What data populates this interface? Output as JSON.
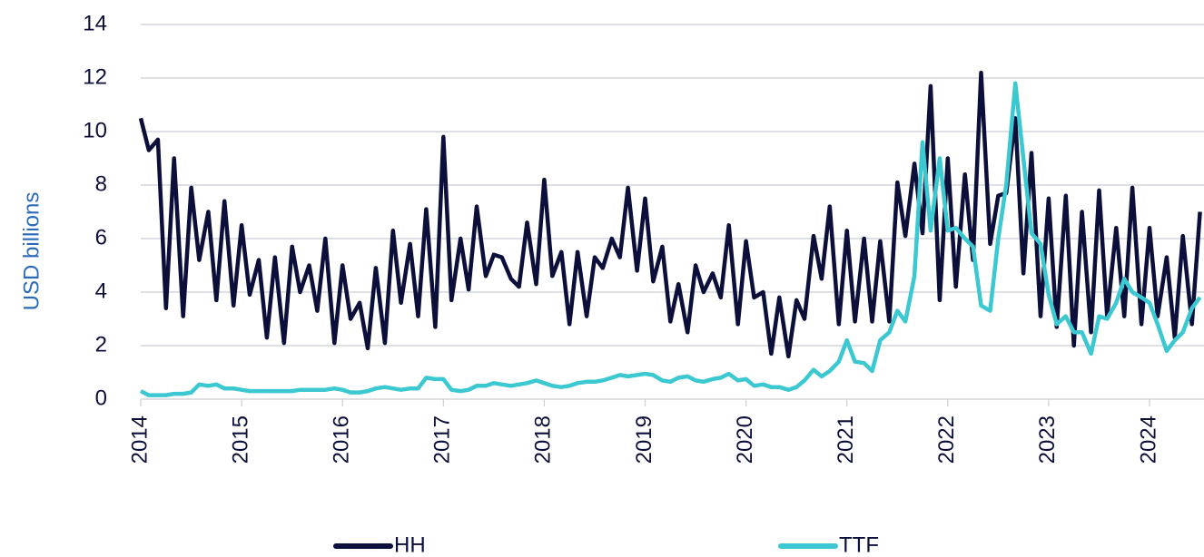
{
  "chart_data": {
    "type": "line",
    "ylabel": "USD billions",
    "x": [
      2014,
      2014.08,
      2014.17,
      2014.25,
      2014.33,
      2014.42,
      2014.5,
      2014.58,
      2014.67,
      2014.75,
      2014.83,
      2014.92,
      2015,
      2015.08,
      2015.17,
      2015.25,
      2015.33,
      2015.42,
      2015.5,
      2015.58,
      2015.67,
      2015.75,
      2015.83,
      2015.92,
      2016,
      2016.08,
      2016.17,
      2016.25,
      2016.33,
      2016.42,
      2016.5,
      2016.58,
      2016.67,
      2016.75,
      2016.83,
      2016.92,
      2017,
      2017.08,
      2017.17,
      2017.25,
      2017.33,
      2017.42,
      2017.5,
      2017.58,
      2017.67,
      2017.75,
      2017.83,
      2017.92,
      2018,
      2018.08,
      2018.17,
      2018.25,
      2018.33,
      2018.42,
      2018.5,
      2018.58,
      2018.67,
      2018.75,
      2018.83,
      2018.92,
      2019,
      2019.08,
      2019.17,
      2019.25,
      2019.33,
      2019.42,
      2019.5,
      2019.58,
      2019.67,
      2019.75,
      2019.83,
      2019.92,
      2020,
      2020.08,
      2020.17,
      2020.25,
      2020.33,
      2020.42,
      2020.5,
      2020.58,
      2020.67,
      2020.75,
      2020.83,
      2020.92,
      2021,
      2021.08,
      2021.17,
      2021.25,
      2021.33,
      2021.42,
      2021.5,
      2021.58,
      2021.67,
      2021.75,
      2021.83,
      2021.92,
      2022,
      2022.08,
      2022.17,
      2022.25,
      2022.33,
      2022.42,
      2022.5,
      2022.58,
      2022.67,
      2022.75,
      2022.83,
      2022.92,
      2023,
      2023.08,
      2023.17,
      2023.25,
      2023.33,
      2023.42,
      2023.5,
      2023.58,
      2023.67,
      2023.75,
      2023.83,
      2023.92,
      2024,
      2024.08,
      2024.17,
      2024.25,
      2024.33,
      2024.42,
      2024.5
    ],
    "series": [
      {
        "name": "HH",
        "color": "#0c0f3a",
        "values": [
          10.5,
          9.3,
          9.7,
          3.4,
          9.0,
          3.1,
          7.9,
          5.2,
          7.0,
          3.7,
          7.4,
          3.5,
          6.5,
          3.9,
          5.2,
          2.3,
          5.3,
          2.1,
          5.7,
          4.0,
          5.0,
          3.3,
          6.0,
          2.1,
          5.0,
          3.0,
          3.6,
          1.9,
          4.9,
          2.1,
          6.3,
          3.6,
          5.8,
          3.1,
          7.1,
          2.7,
          9.8,
          3.7,
          6.0,
          4.1,
          7.2,
          4.6,
          5.4,
          5.3,
          4.5,
          4.2,
          6.6,
          4.3,
          8.2,
          4.6,
          5.5,
          2.8,
          5.5,
          3.1,
          5.3,
          4.9,
          6.0,
          5.3,
          7.9,
          4.8,
          7.5,
          4.4,
          5.7,
          2.9,
          4.3,
          2.5,
          5.0,
          4.0,
          4.7,
          3.8,
          6.5,
          2.8,
          5.9,
          3.8,
          4.0,
          1.7,
          3.8,
          1.6,
          3.7,
          3.0,
          6.1,
          4.5,
          7.2,
          2.8,
          6.3,
          2.9,
          6.0,
          2.9,
          5.9,
          2.9,
          8.1,
          6.1,
          8.8,
          6.2,
          11.7,
          3.7,
          9.0,
          4.2,
          8.4,
          5.2,
          12.2,
          5.8,
          7.6,
          7.7,
          10.5,
          4.7,
          9.2,
          3.1,
          7.5,
          2.7,
          7.6,
          2.0,
          7.0,
          2.5,
          7.8,
          3.1,
          6.4,
          3.1,
          7.9,
          2.8,
          6.4,
          3.1,
          5.3,
          2.3,
          6.1,
          2.8,
          7.0
        ]
      },
      {
        "name": "TTF",
        "color": "#3cc8d0",
        "values": [
          0.3,
          0.15,
          0.15,
          0.15,
          0.2,
          0.2,
          0.25,
          0.55,
          0.5,
          0.55,
          0.4,
          0.4,
          0.35,
          0.3,
          0.3,
          0.3,
          0.3,
          0.3,
          0.3,
          0.35,
          0.35,
          0.35,
          0.35,
          0.4,
          0.35,
          0.25,
          0.25,
          0.3,
          0.4,
          0.45,
          0.4,
          0.35,
          0.4,
          0.4,
          0.8,
          0.75,
          0.75,
          0.35,
          0.3,
          0.35,
          0.5,
          0.5,
          0.6,
          0.55,
          0.5,
          0.55,
          0.6,
          0.7,
          0.6,
          0.5,
          0.45,
          0.5,
          0.6,
          0.65,
          0.65,
          0.7,
          0.8,
          0.9,
          0.85,
          0.9,
          0.95,
          0.9,
          0.7,
          0.65,
          0.8,
          0.85,
          0.7,
          0.65,
          0.75,
          0.8,
          0.95,
          0.7,
          0.75,
          0.5,
          0.55,
          0.45,
          0.45,
          0.35,
          0.45,
          0.7,
          1.1,
          0.85,
          1.05,
          1.4,
          2.2,
          1.4,
          1.35,
          1.05,
          2.2,
          2.5,
          3.3,
          2.9,
          4.6,
          9.6,
          6.3,
          9.0,
          6.3,
          6.4,
          6.0,
          5.7,
          3.5,
          3.3,
          6.0,
          8.0,
          11.8,
          9.0,
          6.2,
          5.8,
          3.9,
          2.8,
          3.1,
          2.5,
          2.5,
          1.7,
          3.1,
          3.0,
          3.6,
          4.5,
          4.0,
          3.8,
          3.6,
          2.8,
          1.8,
          2.2,
          2.5,
          3.4,
          3.8
        ]
      }
    ],
    "xlim": [
      2014,
      2024.54
    ],
    "xticks": [
      2014,
      2015,
      2016,
      2017,
      2018,
      2019,
      2020,
      2021,
      2022,
      2023,
      2024
    ],
    "ylim": [
      0,
      14
    ],
    "yticks": [
      0,
      2,
      4,
      6,
      8,
      10,
      12,
      14
    ],
    "grid": true,
    "legend": "bottom"
  }
}
